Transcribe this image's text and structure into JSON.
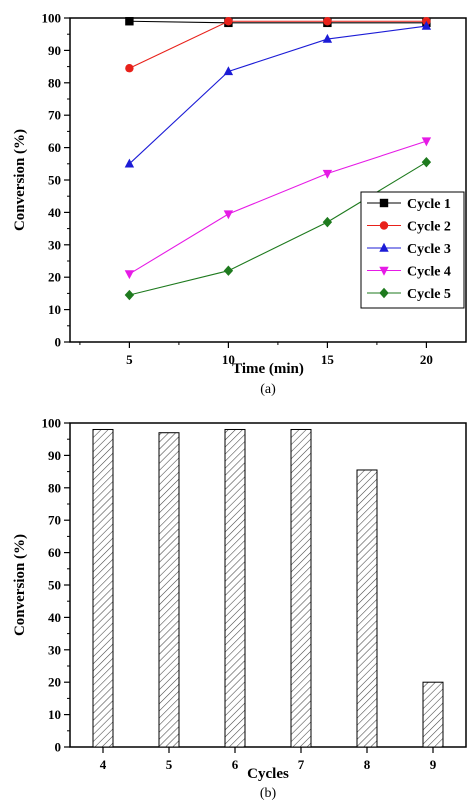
{
  "chart_data": [
    {
      "type": "line",
      "caption": "(a)",
      "xlabel": "Time (min)",
      "ylabel": "Conversion (%)",
      "x": [
        5,
        10,
        15,
        20
      ],
      "xlim": [
        2,
        22
      ],
      "ylim": [
        0,
        100
      ],
      "xticks": [
        5,
        10,
        15,
        20
      ],
      "yticks": [
        0,
        10,
        20,
        30,
        40,
        50,
        60,
        70,
        80,
        90,
        100
      ],
      "legend_position": "right",
      "series": [
        {
          "name": "Cycle 1",
          "values": [
            99,
            98.5,
            98.5,
            98.5
          ],
          "color": "#000000",
          "marker": "square"
        },
        {
          "name": "Cycle 2",
          "values": [
            84.5,
            99,
            99,
            99
          ],
          "color": "#e8211a",
          "marker": "circle"
        },
        {
          "name": "Cycle 3",
          "values": [
            55,
            83.5,
            93.5,
            97.5
          ],
          "color": "#1c1cd6",
          "marker": "triangle-up"
        },
        {
          "name": "Cycle 4",
          "values": [
            21,
            39.5,
            52,
            62
          ],
          "color": "#e61ae6",
          "marker": "triangle-down"
        },
        {
          "name": "Cycle 5",
          "values": [
            14.5,
            22,
            37,
            55.5
          ],
          "color": "#1e7a1e",
          "marker": "diamond"
        }
      ]
    },
    {
      "type": "bar",
      "caption": "(b)",
      "xlabel": "Cycles",
      "ylabel": "Conversion (%)",
      "categories": [
        "4",
        "5",
        "6",
        "7",
        "8",
        "9"
      ],
      "values": [
        98,
        97,
        98,
        98,
        85.5,
        20
      ],
      "ylim": [
        0,
        100
      ],
      "yticks": [
        0,
        10,
        20,
        30,
        40,
        50,
        60,
        70,
        80,
        90,
        100
      ],
      "bar_fill": "hatched"
    }
  ]
}
